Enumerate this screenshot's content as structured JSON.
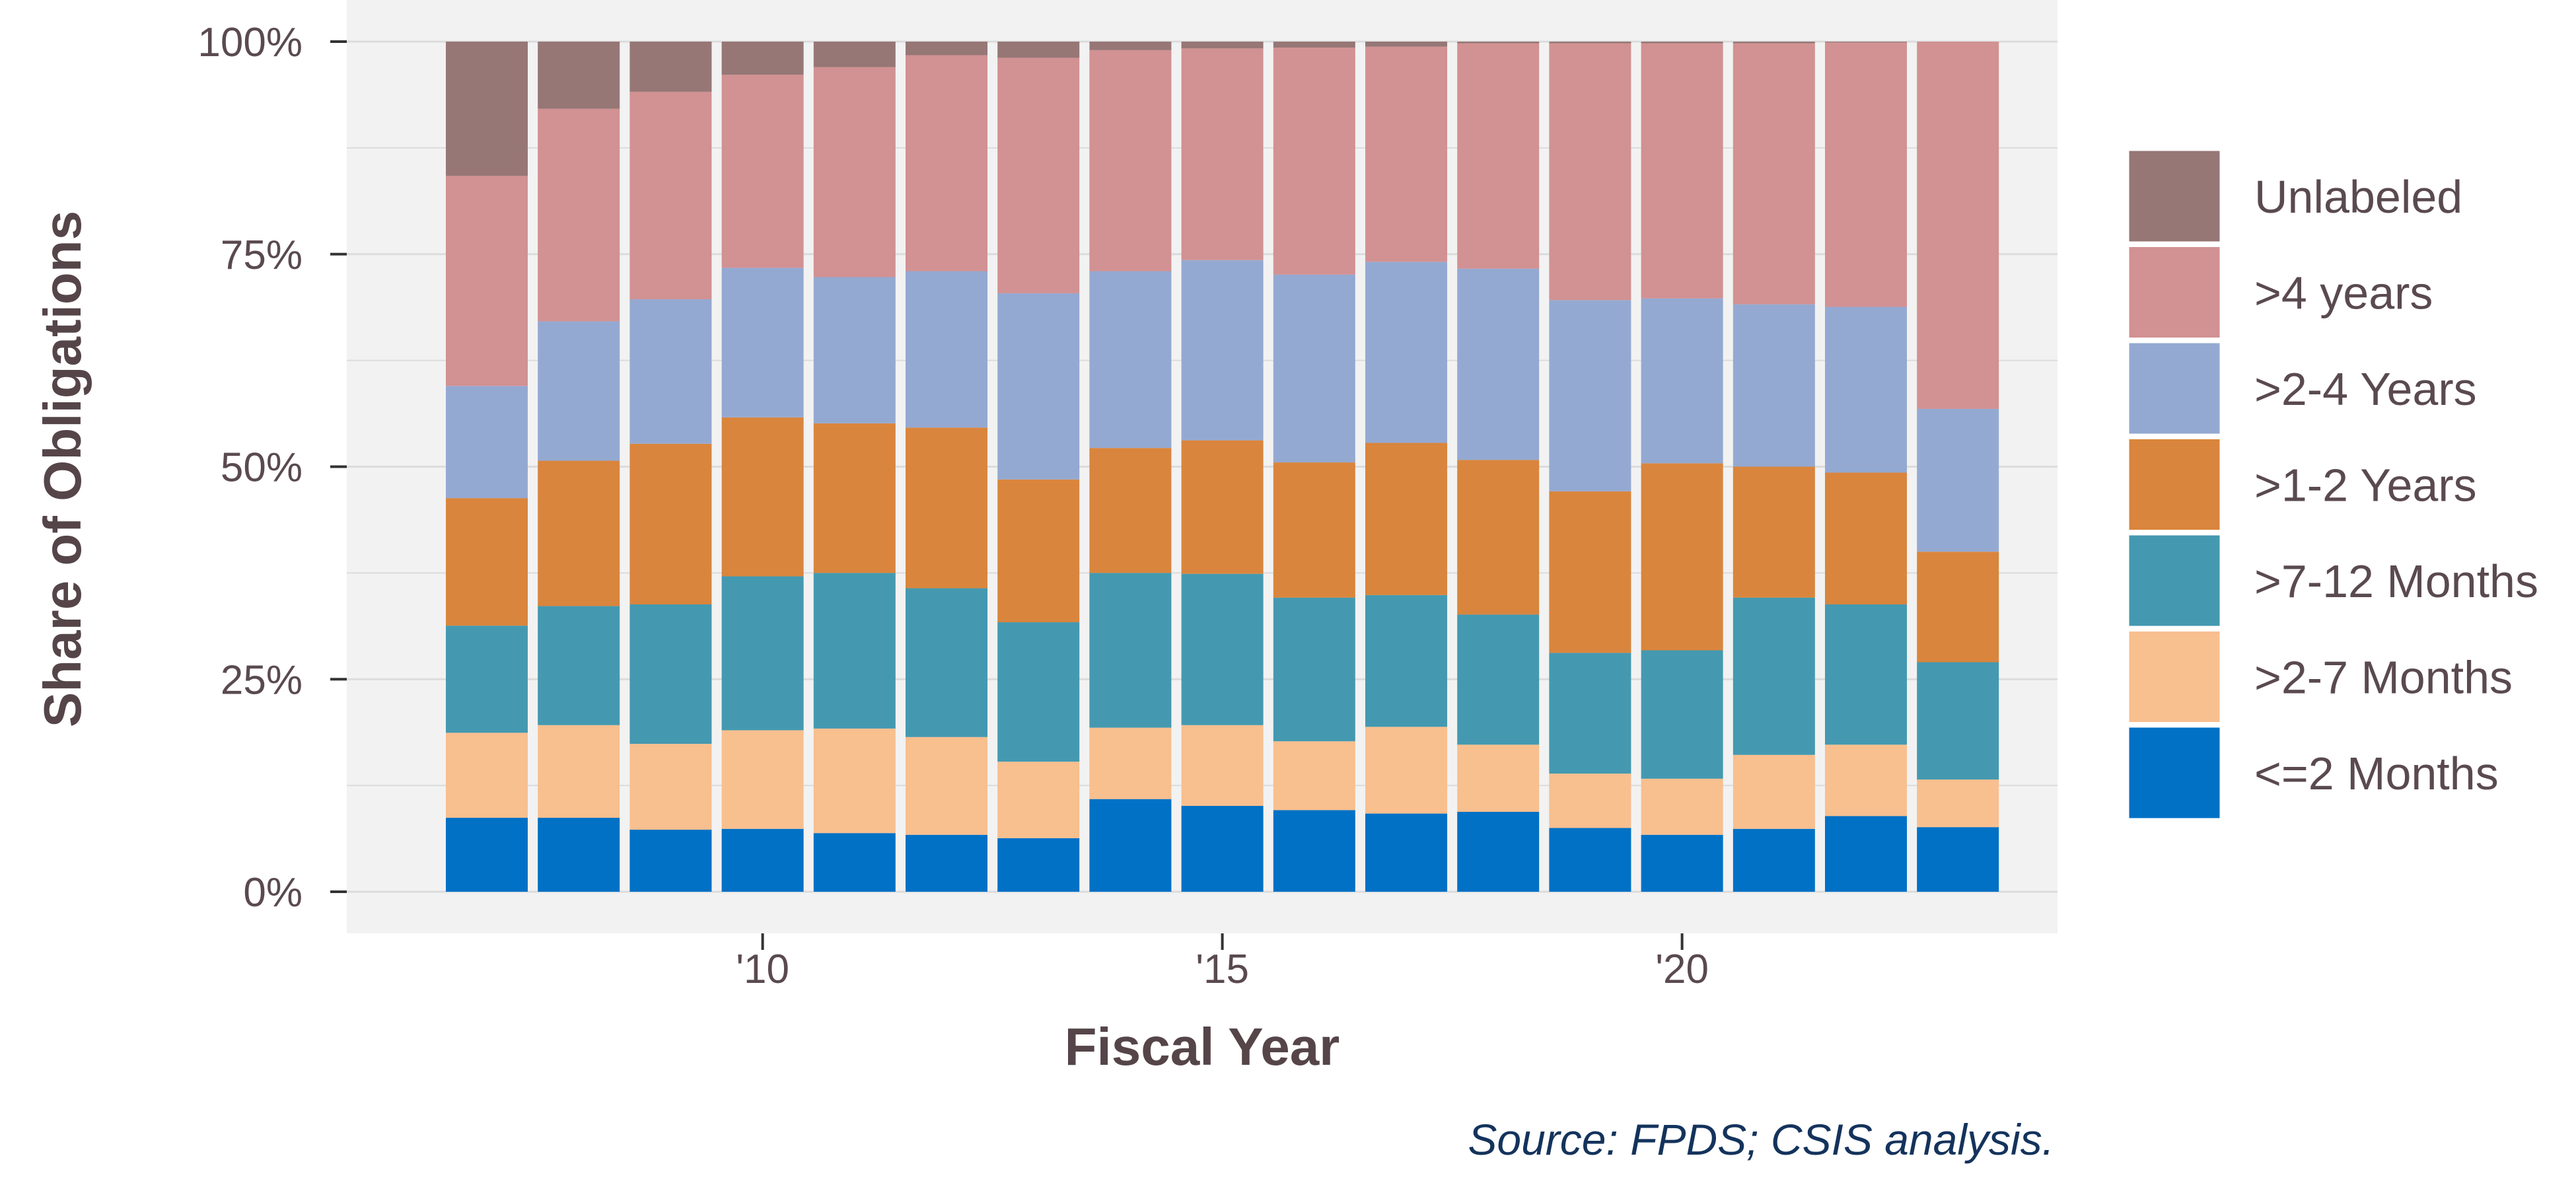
{
  "chart_data": {
    "type": "bar",
    "stacked": true,
    "normalized": true,
    "xlabel": "Fiscal Year",
    "ylabel": "Share of Obligations",
    "source": "Source: FPDS; CSIS analysis.",
    "ylim": [
      0,
      1
    ],
    "y_ticks": [
      0,
      0.25,
      0.5,
      0.75,
      1.0
    ],
    "y_tick_labels": [
      "0%",
      "25%",
      "50%",
      "75%",
      "100%"
    ],
    "x_ticks": [
      2010,
      2015,
      2020
    ],
    "x_tick_labels": [
      "'10",
      "'15",
      "'20"
    ],
    "grid": true,
    "legend_position": "right",
    "categories": [
      2007,
      2008,
      2009,
      2010,
      2011,
      2012,
      2013,
      2014,
      2015,
      2016,
      2017,
      2018,
      2019,
      2020,
      2021,
      2022,
      2023
    ],
    "series": [
      {
        "name": "<=2 Months",
        "color": "#0071c5",
        "values": [
          0.087,
          0.087,
          0.073,
          0.074,
          0.069,
          0.067,
          0.063,
          0.109,
          0.101,
          0.096,
          0.092,
          0.094,
          0.075,
          0.067,
          0.074,
          0.089,
          0.076
        ]
      },
      {
        "name": ">2-7 Months",
        "color": "#f8bf8f",
        "values": [
          0.1,
          0.109,
          0.101,
          0.116,
          0.123,
          0.115,
          0.09,
          0.084,
          0.095,
          0.081,
          0.102,
          0.079,
          0.064,
          0.066,
          0.087,
          0.084,
          0.056
        ]
      },
      {
        "name": ">7-12 Months",
        "color": "#4499b0",
        "values": [
          0.126,
          0.14,
          0.164,
          0.181,
          0.183,
          0.175,
          0.164,
          0.182,
          0.178,
          0.169,
          0.155,
          0.153,
          0.142,
          0.151,
          0.185,
          0.165,
          0.138
        ]
      },
      {
        "name": ">1-2 Years",
        "color": "#d9853d",
        "values": [
          0.15,
          0.171,
          0.189,
          0.187,
          0.176,
          0.189,
          0.168,
          0.147,
          0.157,
          0.159,
          0.179,
          0.182,
          0.19,
          0.22,
          0.154,
          0.155,
          0.13
        ]
      },
      {
        "name": ">2-4 Years",
        "color": "#94a9d1",
        "values": [
          0.132,
          0.164,
          0.17,
          0.176,
          0.172,
          0.184,
          0.219,
          0.208,
          0.212,
          0.221,
          0.213,
          0.225,
          0.225,
          0.194,
          0.191,
          0.195,
          0.168
        ]
      },
      {
        "name": ">4 years",
        "color": "#d29192",
        "values": [
          0.247,
          0.25,
          0.244,
          0.227,
          0.247,
          0.254,
          0.277,
          0.26,
          0.249,
          0.267,
          0.253,
          0.265,
          0.302,
          0.3,
          0.307,
          0.311,
          0.432
        ]
      },
      {
        "name": "Unlabeled",
        "color": "#967776",
        "values": [
          0.158,
          0.079,
          0.059,
          0.039,
          0.03,
          0.016,
          0.019,
          0.01,
          0.008,
          0.007,
          0.006,
          0.002,
          0.002,
          0.002,
          0.002,
          0.001,
          0.0
        ]
      }
    ],
    "legend_order": [
      "Unlabeled",
      ">4 years",
      ">2-4 Years",
      ">1-2 Years",
      ">7-12 Months",
      ">2-7 Months",
      "<=2 Months"
    ]
  },
  "colors": {
    "panel_background": "#f2f2f2",
    "grid": "#dcdcdc",
    "axis_text": "#5a4a4f",
    "source_text": "#14335c"
  }
}
